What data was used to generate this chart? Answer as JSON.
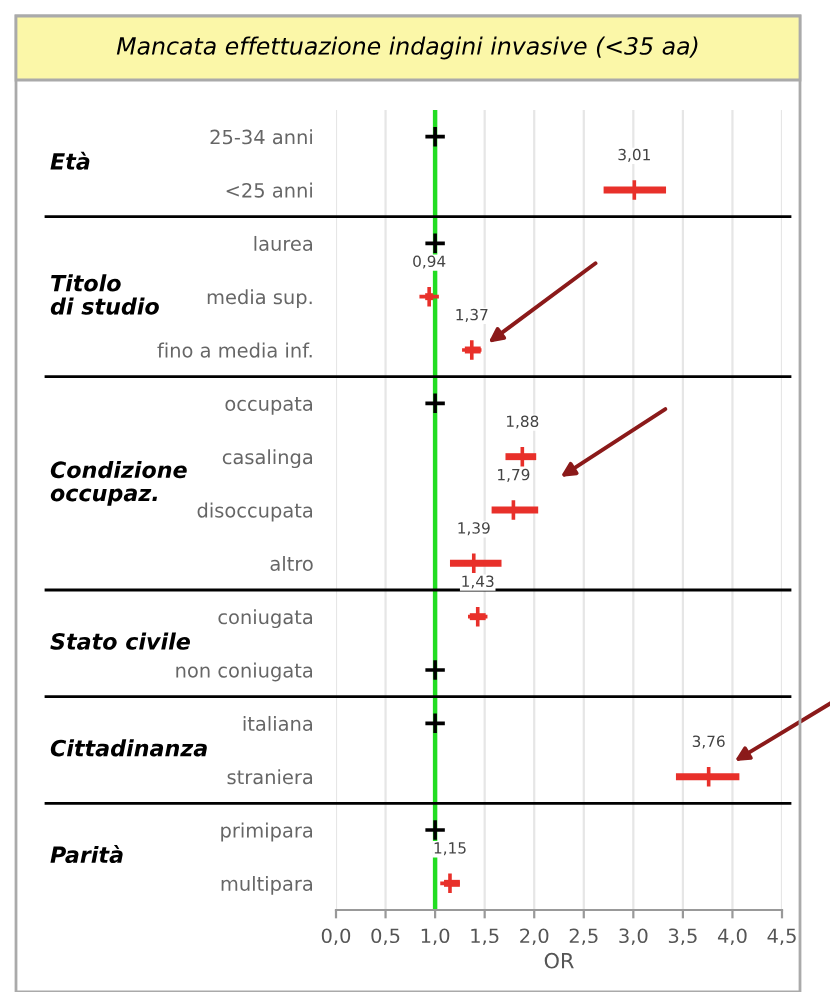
{
  "chart_data": {
    "type": "scatter",
    "orientation": "horizontal",
    "title": "Mancata effettuazione indagini invasive (<35 aa)",
    "xlabel": "OR",
    "categories": [
      "25-34 anni",
      "<25 anni",
      "laurea",
      "media sup.",
      "fino a media inf.",
      "occupata",
      "casalinga",
      "disoccupata",
      "altro",
      "coniugata",
      "non coniugata",
      "italiana",
      "straniera",
      "primipara",
      "multipara"
    ],
    "values": [
      1,
      3.01,
      1,
      0.94,
      1.37,
      1,
      1.88,
      1.79,
      1.39,
      1.43,
      1,
      1,
      3.76,
      1,
      1.15
    ],
    "errors": [
      null,
      [
        2.7,
        3.33
      ],
      null,
      [
        0.9,
        0.98
      ],
      [
        1.3,
        1.46
      ],
      null,
      [
        1.71,
        2.02
      ],
      [
        1.57,
        2.04
      ],
      [
        1.15,
        1.67
      ],
      [
        1.35,
        1.51
      ],
      null,
      null,
      [
        3.43,
        4.07
      ],
      null,
      [
        1.09,
        1.25
      ]
    ],
    "value_labels": [
      null,
      "3,01",
      null,
      "0,94",
      "1,37",
      null,
      "1,88",
      "1,79",
      "1,39",
      "1,43",
      null,
      null,
      "3,76",
      null,
      "1,15"
    ],
    "colors": [
      "#000000",
      "#e8302a",
      "#000000",
      "#e8302a",
      "#e8302a",
      "#000000",
      "#e8302a",
      "#e8302a",
      "#e8302a",
      "#e8302a",
      "#000000",
      "#000000",
      "#e8302a",
      "#000000",
      "#e8302a"
    ],
    "xlim": [
      0,
      4.5
    ],
    "xticks": [
      {
        "value": 0,
        "label": "0,0"
      },
      {
        "value": 0.5,
        "label": "0,5"
      },
      {
        "value": 1,
        "label": "1,0"
      },
      {
        "value": 1.5,
        "label": "1,5"
      },
      {
        "value": 2,
        "label": "2,0"
      },
      {
        "value": 2.5,
        "label": "2,5"
      },
      {
        "value": 3,
        "label": "3,0"
      },
      {
        "value": 3.5,
        "label": "3,5"
      },
      {
        "value": 4,
        "label": "4,0"
      },
      {
        "value": 4.5,
        "label": "4,5"
      }
    ],
    "ref_lines": [
      {
        "axis": "x",
        "value": 1,
        "color": "#22dd22"
      }
    ],
    "annotations": [
      "Età",
      "Titolo\ndi studio",
      "Condizione\noccupaz.",
      "Stato civile",
      "Cittadinanza",
      "Parità"
    ],
    "grid": "x",
    "marker": "cross"
  }
}
